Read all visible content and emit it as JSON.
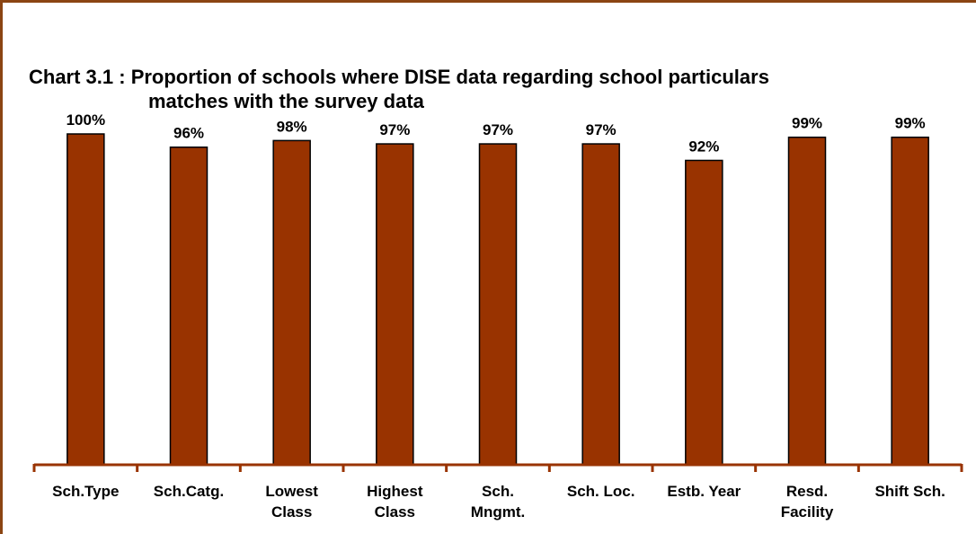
{
  "chart_data": {
    "type": "bar",
    "title_line1": "Chart 3.1 : Proportion of schools where DISE data regarding school particulars",
    "title_line2": "matches with the survey data",
    "categories": [
      [
        "Sch.Type"
      ],
      [
        "Sch.Catg."
      ],
      [
        "Lowest",
        "Class"
      ],
      [
        "Highest",
        "Class"
      ],
      [
        "Sch.",
        "Mngmt."
      ],
      [
        "Sch. Loc."
      ],
      [
        "Estb. Year"
      ],
      [
        "Resd.",
        "Facility"
      ],
      [
        "Shift Sch."
      ]
    ],
    "values": [
      100,
      96,
      98,
      97,
      97,
      97,
      92,
      99,
      99
    ],
    "value_labels": [
      "100%",
      "96%",
      "98%",
      "97%",
      "97%",
      "97%",
      "92%",
      "99%",
      "99%"
    ],
    "ylim": [
      0,
      100
    ],
    "grid": false,
    "bar_color": "#993300",
    "axis_color": "#993300"
  }
}
